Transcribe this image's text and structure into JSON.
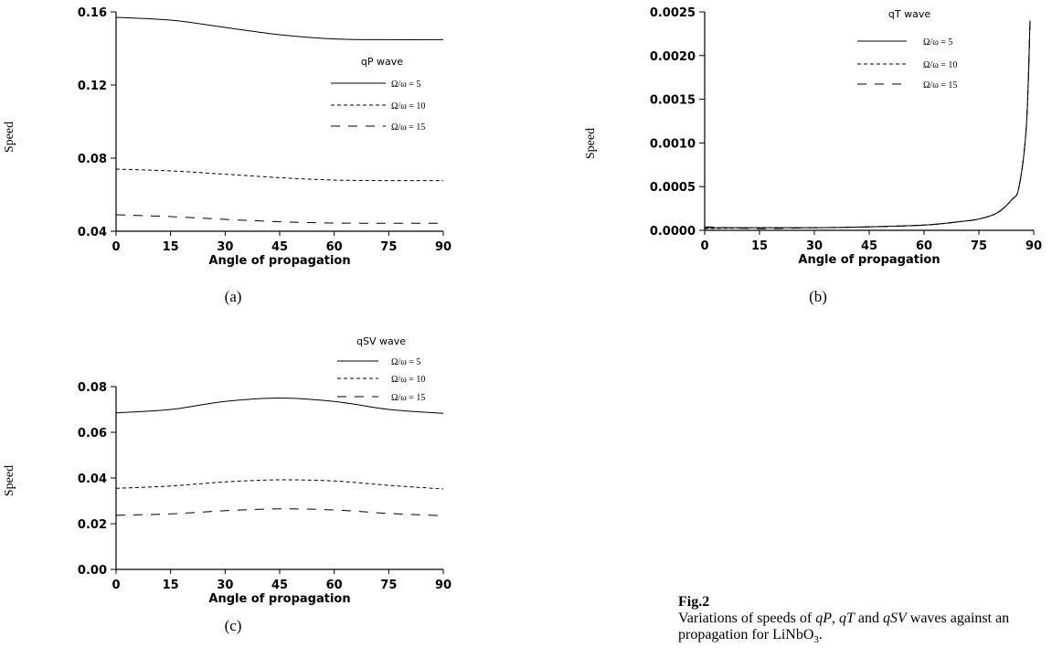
{
  "chart_data": [
    {
      "type": "line",
      "title": "qP wave",
      "xlabel": "Angle of propagation",
      "ylabel": "Speed",
      "sublabel": "(a)",
      "xlim": [
        0,
        90
      ],
      "ylim": [
        0.04,
        0.16
      ],
      "xticks": [
        "0",
        "15",
        "30",
        "45",
        "60",
        "75",
        "90"
      ],
      "yticks": [
        "0.04",
        "0.08",
        "0.12",
        "0.16"
      ],
      "grid": false,
      "legend": "top-right",
      "x": [
        0,
        15,
        30,
        45,
        60,
        75,
        90
      ],
      "series": [
        {
          "name": "Ω/ω = 5",
          "style": "solid",
          "values": [
            0.157,
            0.1555,
            0.1515,
            0.1475,
            0.1452,
            0.1448,
            0.1448
          ]
        },
        {
          "name": "Ω/ω = 10",
          "style": "dotted",
          "values": [
            0.074,
            0.073,
            0.0712,
            0.0693,
            0.068,
            0.0677,
            0.0677
          ]
        },
        {
          "name": "Ω/ω = 15",
          "style": "dashed",
          "values": [
            0.049,
            0.048,
            0.0465,
            0.0452,
            0.0445,
            0.0444,
            0.0444
          ]
        }
      ]
    },
    {
      "type": "line",
      "title": "qT wave",
      "xlabel": "Angle of propagation",
      "ylabel": "Speed",
      "sublabel": "(b)",
      "xlim": [
        0,
        90
      ],
      "ylim": [
        0,
        0.0025
      ],
      "xticks": [
        "0",
        "15",
        "30",
        "45",
        "60",
        "75",
        "90"
      ],
      "yticks": [
        "0.0000",
        "0.0005",
        "0.0010",
        "0.0015",
        "0.0020",
        "0.0025"
      ],
      "grid": false,
      "legend": "top-right",
      "x": [
        0,
        15,
        30,
        45,
        60,
        70,
        75,
        80,
        84,
        86,
        88,
        89
      ],
      "series": [
        {
          "name": "Ω/ω = 5",
          "style": "solid",
          "values": [
            3e-05,
            3e-05,
            3e-05,
            4e-05,
            6e-05,
            0.0001,
            0.00013,
            0.0002,
            0.00035,
            0.0005,
            0.0012,
            0.0024
          ]
        },
        {
          "name": "Ω/ω = 10",
          "style": "dotted",
          "values": [
            2e-05,
            3e-05,
            3e-05,
            4e-05,
            6e-05,
            0.0001,
            0.00013,
            0.0002,
            0.00035,
            0.0005,
            0.0012,
            0.0024
          ]
        },
        {
          "name": "Ω/ω = 15",
          "style": "dashed",
          "values": [
            4e-05,
            2e-05,
            3e-05,
            4e-05,
            6e-05,
            0.0001,
            0.00013,
            0.0002,
            0.00035,
            0.0005,
            0.0012,
            0.0024
          ]
        }
      ]
    },
    {
      "type": "line",
      "title": "qSV wave",
      "xlabel": "Angle of propagation",
      "ylabel": "Speed",
      "sublabel": "(c)",
      "xlim": [
        0,
        90
      ],
      "ylim": [
        0,
        0.08
      ],
      "xticks": [
        "0",
        "15",
        "30",
        "45",
        "60",
        "75",
        "90"
      ],
      "yticks": [
        "0.00",
        "0.02",
        "0.04",
        "0.06",
        "0.08"
      ],
      "grid": false,
      "legend": "top-right",
      "x": [
        0,
        15,
        30,
        45,
        60,
        75,
        90
      ],
      "series": [
        {
          "name": "Ω/ω = 5",
          "style": "solid",
          "values": [
            0.0685,
            0.07,
            0.0735,
            0.075,
            0.0735,
            0.07,
            0.0683
          ]
        },
        {
          "name": "Ω/ω = 10",
          "style": "dotted",
          "values": [
            0.0355,
            0.0365,
            0.0383,
            0.0392,
            0.0387,
            0.0368,
            0.0352
          ]
        },
        {
          "name": "Ω/ω = 15",
          "style": "dashed",
          "values": [
            0.0237,
            0.0243,
            0.0257,
            0.0265,
            0.026,
            0.0245,
            0.0235
          ]
        }
      ]
    }
  ],
  "caption": {
    "title": "Fig.2",
    "line1": "Variations of speeds of qP, qT and qSV waves against an",
    "line2": "propagation for LiNbO3."
  }
}
